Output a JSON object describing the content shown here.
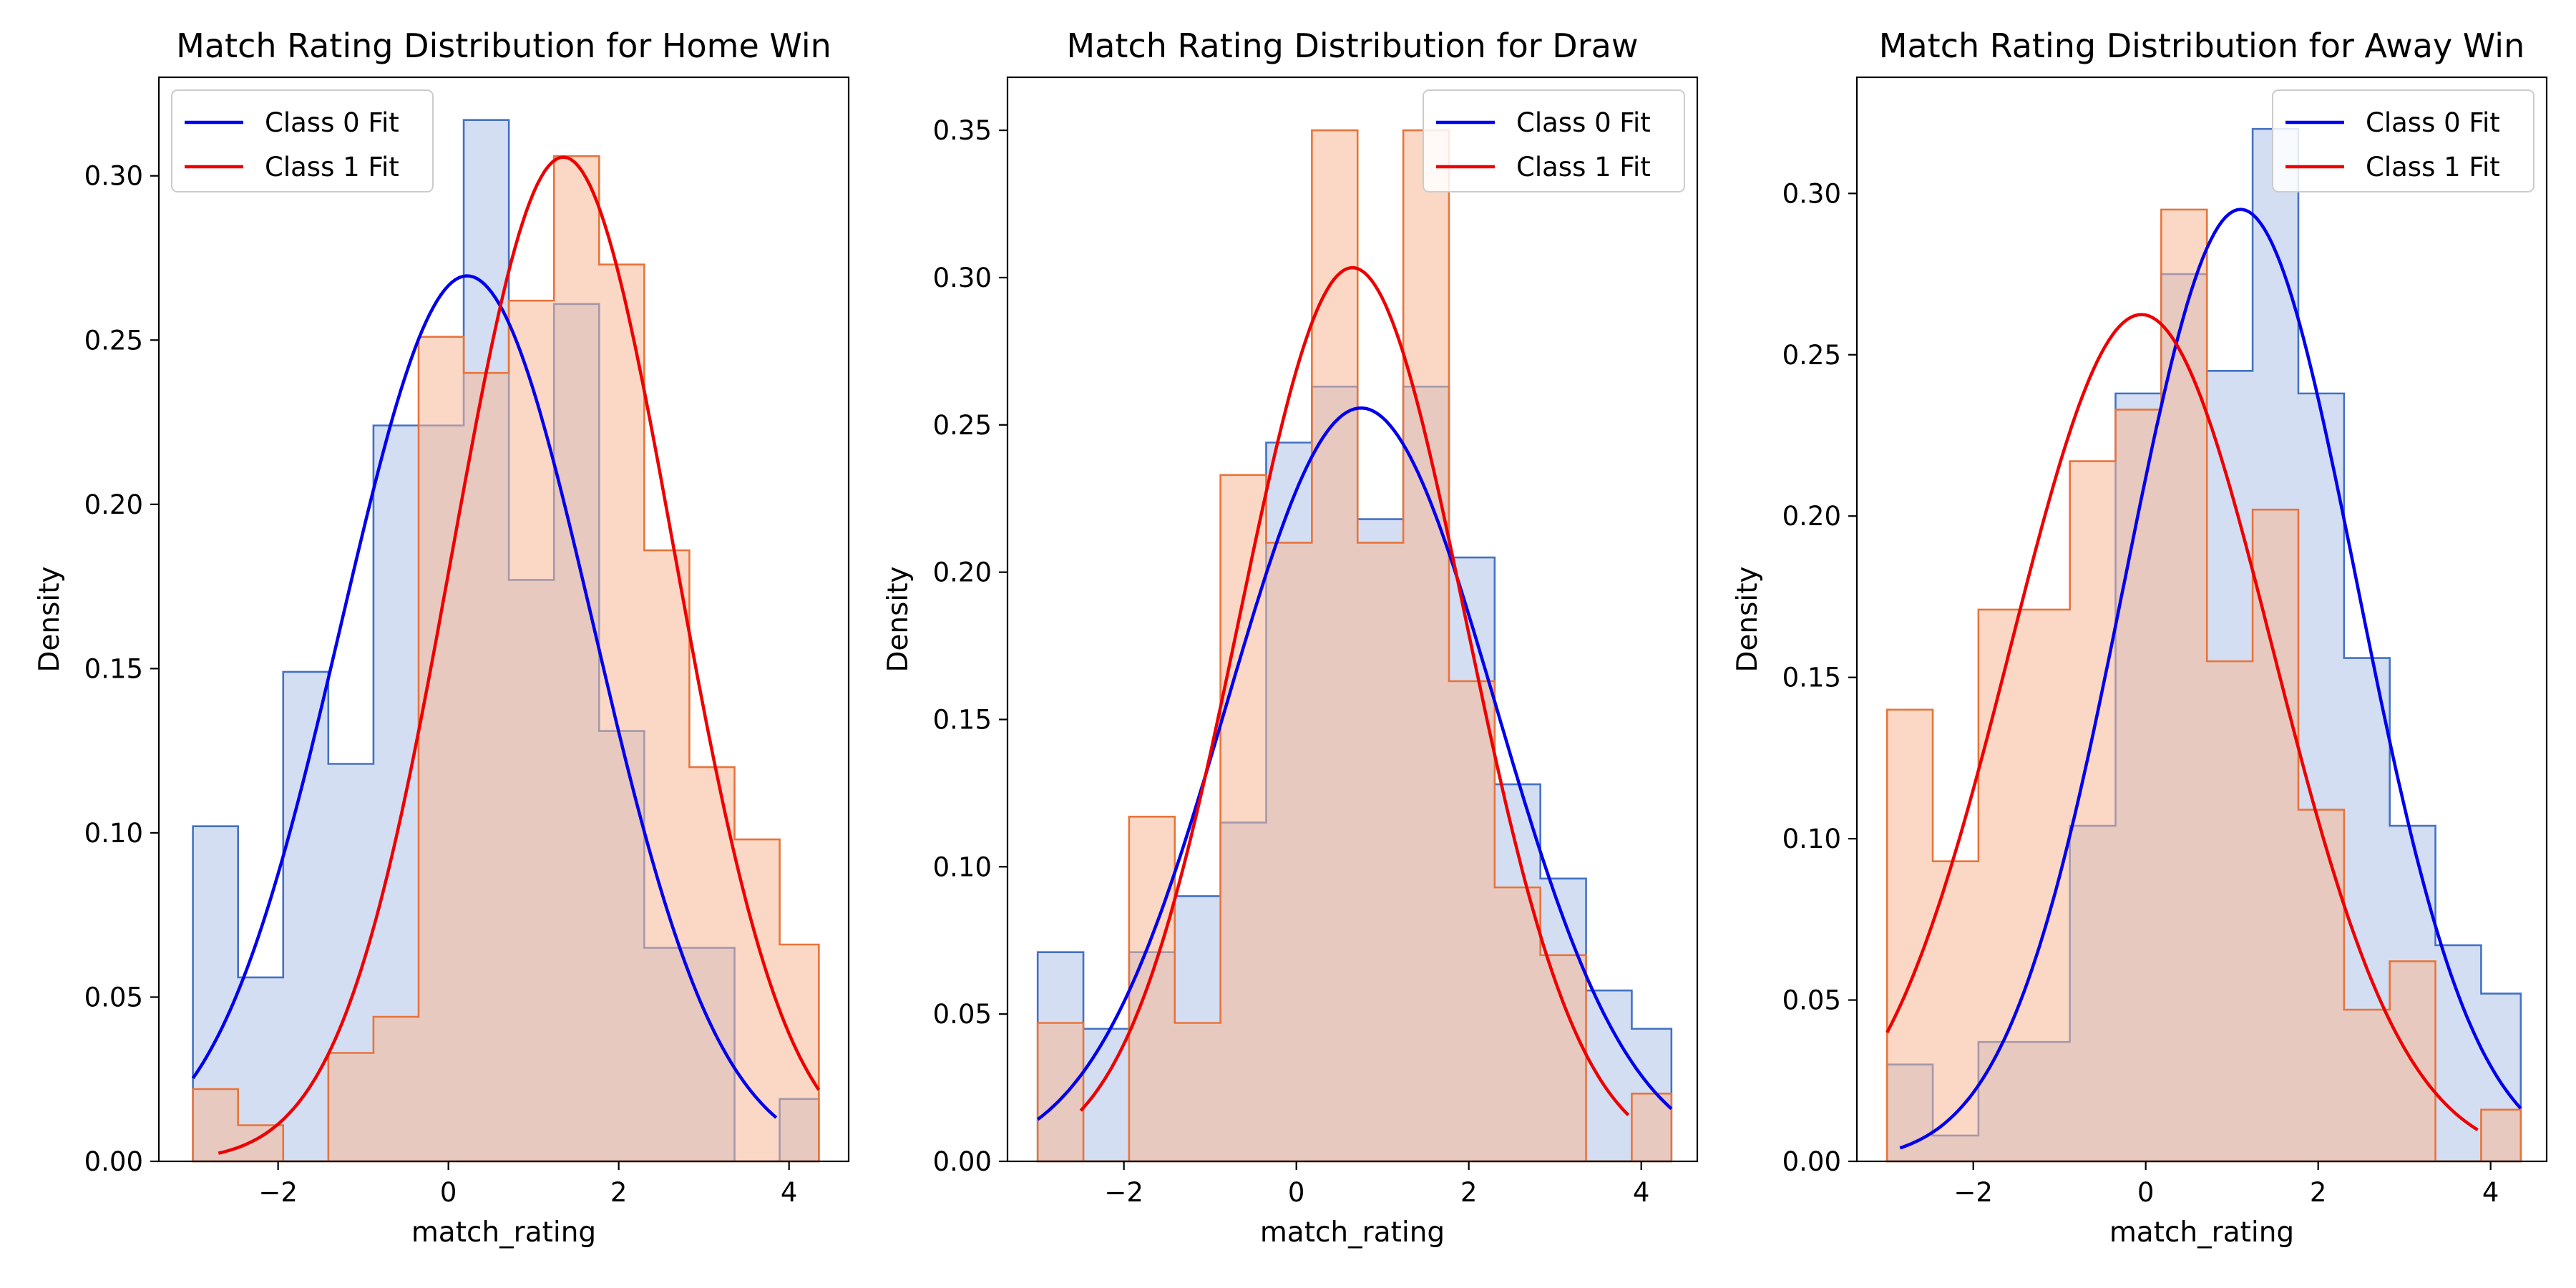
{
  "chart_data": [
    {
      "type": "histogram",
      "title": "Match Rating Distribution for Home Win",
      "xlabel": "match_rating",
      "ylabel": "Density",
      "xlim": [
        -3.4,
        4.7
      ],
      "ylim": [
        0,
        0.33
      ],
      "xticks": [
        -2,
        0,
        2,
        4
      ],
      "yticks": [
        0.0,
        0.05,
        0.1,
        0.15,
        0.2,
        0.25,
        0.3
      ],
      "ytick_labels": [
        "0.00",
        "0.05",
        "0.10",
        "0.15",
        "0.20",
        "0.25",
        "0.30"
      ],
      "legend": {
        "position": "top-left",
        "entries": [
          "Class 0 Fit",
          "Class 1 Fit"
        ]
      },
      "bin_edges": [
        -3.0,
        -2.47,
        -1.94,
        -1.41,
        -0.88,
        -0.35,
        0.18,
        0.71,
        1.24,
        1.77,
        2.3,
        2.83,
        3.36,
        3.89,
        4.35
      ],
      "series": [
        {
          "name": "Class 0",
          "color": "#4472c4",
          "fill": "#aec3ea",
          "densities": [
            0.102,
            0.056,
            0.149,
            0.121,
            0.224,
            0.224,
            0.317,
            0.177,
            0.261,
            0.131,
            0.065,
            0.065,
            0.0,
            0.019
          ]
        },
        {
          "name": "Class 1",
          "color": "#e8743b",
          "fill": "#f7b896",
          "densities": [
            0.022,
            0.011,
            0.0,
            0.033,
            0.044,
            0.251,
            0.24,
            0.262,
            0.306,
            0.273,
            0.186,
            0.12,
            0.098,
            0.066
          ]
        }
      ],
      "fits": [
        {
          "name": "Class 0 Fit",
          "color": "#0000ee",
          "mean": 0.22,
          "std": 1.48,
          "x_range": [
            -3.0,
            3.85
          ]
        },
        {
          "name": "Class 1 Fit",
          "color": "#ee0000",
          "mean": 1.35,
          "std": 1.305,
          "x_range": [
            -2.7,
            4.35
          ]
        }
      ]
    },
    {
      "type": "histogram",
      "title": "Match Rating Distribution for Draw",
      "xlabel": "match_rating",
      "ylabel": "Density",
      "xlim": [
        -3.35,
        4.65
      ],
      "ylim": [
        0,
        0.368
      ],
      "xticks": [
        -2,
        0,
        2,
        4
      ],
      "yticks": [
        0.0,
        0.05,
        0.1,
        0.15,
        0.2,
        0.25,
        0.3,
        0.35
      ],
      "ytick_labels": [
        "0.00",
        "0.05",
        "0.10",
        "0.15",
        "0.20",
        "0.25",
        "0.30",
        "0.35"
      ],
      "legend": {
        "position": "top-right",
        "entries": [
          "Class 0 Fit",
          "Class 1 Fit"
        ]
      },
      "bin_edges": [
        -3.0,
        -2.47,
        -1.94,
        -1.41,
        -0.88,
        -0.35,
        0.18,
        0.71,
        1.24,
        1.77,
        2.3,
        2.83,
        3.36,
        3.89,
        4.35
      ],
      "series": [
        {
          "name": "Class 0",
          "color": "#4472c4",
          "fill": "#aec3ea",
          "densities": [
            0.071,
            0.045,
            0.071,
            0.09,
            0.115,
            0.244,
            0.263,
            0.218,
            0.263,
            0.205,
            0.128,
            0.096,
            0.058,
            0.045
          ]
        },
        {
          "name": "Class 1",
          "color": "#e8743b",
          "fill": "#f7b896",
          "densities": [
            0.047,
            0.0,
            0.117,
            0.047,
            0.233,
            0.21,
            0.35,
            0.21,
            0.35,
            0.163,
            0.093,
            0.07,
            0.0,
            0.023
          ]
        }
      ],
      "fits": [
        {
          "name": "Class 0 Fit",
          "color": "#0000ee",
          "mean": 0.75,
          "std": 1.56,
          "x_range": [
            -3.0,
            4.35
          ]
        },
        {
          "name": "Class 1 Fit",
          "color": "#ee0000",
          "mean": 0.65,
          "std": 1.315,
          "x_range": [
            -2.5,
            3.85
          ]
        }
      ]
    },
    {
      "type": "histogram",
      "title": "Match Rating Distribution for Away Win",
      "xlabel": "match_rating",
      "ylabel": "Density",
      "xlim": [
        -3.35,
        4.65
      ],
      "ylim": [
        0,
        0.336
      ],
      "xticks": [
        -2,
        0,
        2,
        4
      ],
      "yticks": [
        0.0,
        0.05,
        0.1,
        0.15,
        0.2,
        0.25,
        0.3
      ],
      "ytick_labels": [
        "0.00",
        "0.05",
        "0.10",
        "0.15",
        "0.20",
        "0.25",
        "0.30"
      ],
      "legend": {
        "position": "top-right",
        "entries": [
          "Class 0 Fit",
          "Class 1 Fit"
        ]
      },
      "bin_edges": [
        -3.0,
        -2.47,
        -1.94,
        -1.41,
        -0.88,
        -0.35,
        0.18,
        0.71,
        1.24,
        1.77,
        2.3,
        2.83,
        3.36,
        3.89,
        4.35
      ],
      "series": [
        {
          "name": "Class 0",
          "color": "#4472c4",
          "fill": "#aec3ea",
          "densities": [
            0.03,
            0.008,
            0.037,
            0.037,
            0.104,
            0.238,
            0.275,
            0.245,
            0.32,
            0.238,
            0.156,
            0.104,
            0.067,
            0.052
          ]
        },
        {
          "name": "Class 1",
          "color": "#e8743b",
          "fill": "#f7b896",
          "densities": [
            0.14,
            0.093,
            0.171,
            0.171,
            0.217,
            0.233,
            0.295,
            0.155,
            0.202,
            0.109,
            0.047,
            0.062,
            0.0,
            0.016
          ]
        }
      ],
      "fits": [
        {
          "name": "Class 0 Fit",
          "color": "#0000ee",
          "mean": 1.1,
          "std": 1.352,
          "x_range": [
            -2.85,
            4.35
          ]
        },
        {
          "name": "Class 1 Fit",
          "color": "#ee0000",
          "mean": -0.05,
          "std": 1.52,
          "x_range": [
            -3.0,
            3.85
          ]
        }
      ]
    }
  ]
}
